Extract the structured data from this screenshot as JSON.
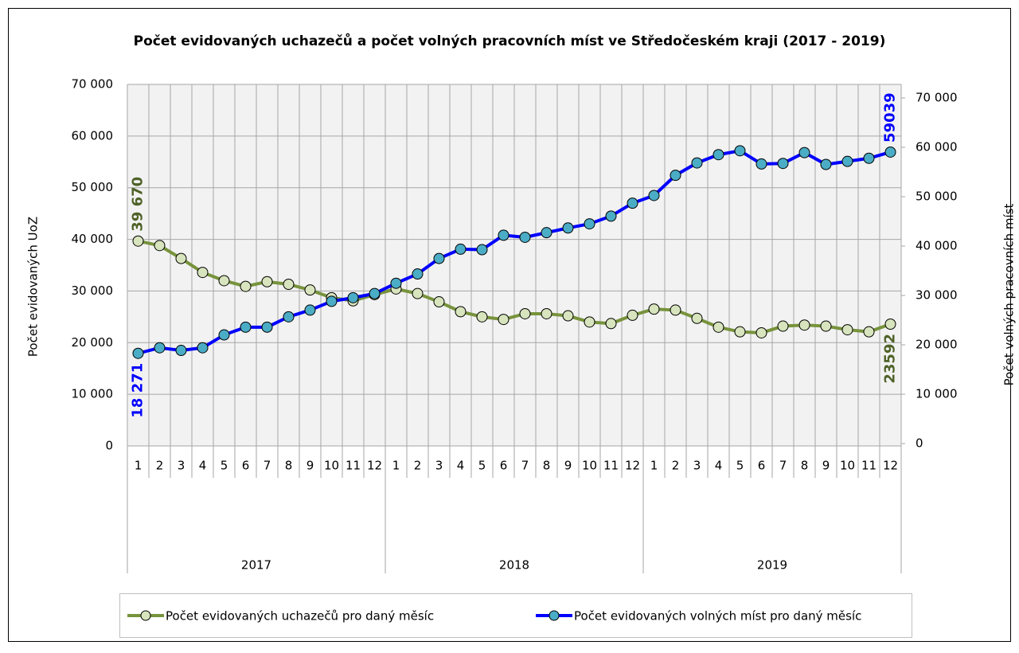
{
  "chart_data": {
    "type": "line",
    "title": "Počet evidovaných uchazečů a počet volných pracovních míst ve Středočeském kraji (2017 - 2019)",
    "y_label": "Počet evidovaných UoZ",
    "y2_label": "Počet volných pracovních míst",
    "categories": [
      "1",
      "2",
      "3",
      "4",
      "5",
      "6",
      "7",
      "8",
      "9",
      "10",
      "11",
      "12",
      "1",
      "2",
      "3",
      "4",
      "5",
      "6",
      "7",
      "8",
      "9",
      "10",
      "11",
      "12",
      "1",
      "2",
      "3",
      "4",
      "5",
      "6",
      "7",
      "8",
      "9",
      "10",
      "11",
      "12"
    ],
    "groups": [
      "2017",
      "2018",
      "2019"
    ],
    "ylim": [
      0,
      70000
    ],
    "yticks": [
      0,
      {
        "value": 10000,
        "label": "10 000"
      },
      {
        "value": 20000,
        "label": "20 000"
      },
      {
        "value": 30000,
        "label": "30 000"
      },
      {
        "value": 40000,
        "label": "40 000"
      },
      {
        "value": 50000,
        "label": "50 000"
      },
      {
        "value": 60000,
        "label": "60 000"
      },
      {
        "value": 70000,
        "label": "70 000"
      }
    ],
    "y2lim": [
      -480,
      72740
    ],
    "y2ticks": [
      0,
      {
        "value": 10000,
        "label": "10 000"
      },
      {
        "value": 20000,
        "label": "20 000"
      },
      {
        "value": 30000,
        "label": "30 000"
      },
      {
        "value": 40000,
        "label": "40 000"
      },
      {
        "value": 50000,
        "label": "50 000"
      },
      {
        "value": 60000,
        "label": "60 000"
      },
      {
        "value": 70000,
        "label": "70 000"
      }
    ],
    "grid": true,
    "legend": "bottom",
    "series": [
      {
        "name": "Počet evidovaných uchazečů pro daný měsíc",
        "color": "#77933c",
        "marker_color": "#d7e4bd",
        "values": [
          39670,
          38800,
          36300,
          33600,
          32000,
          30900,
          31800,
          31300,
          30200,
          28700,
          28100,
          29300,
          30400,
          29500,
          27900,
          26000,
          25000,
          24500,
          25600,
          25600,
          25200,
          24000,
          23700,
          25300,
          26500,
          26300,
          24700,
          23000,
          22100,
          21900,
          23200,
          23400,
          23200,
          22500,
          22100,
          23592
        ],
        "value_labels": [
          "39 670",
          null,
          null,
          null,
          null,
          null,
          null,
          null,
          null,
          null,
          null,
          null,
          null,
          null,
          null,
          null,
          null,
          null,
          null,
          null,
          null,
          null,
          null,
          null,
          null,
          null,
          null,
          null,
          null,
          null,
          null,
          null,
          null,
          null,
          null,
          "23592"
        ]
      },
      {
        "name": "Počet evidovaných volných míst pro daný měsíc",
        "color": "#0000ff",
        "marker_color": "#4bacc6",
        "axis": "y2",
        "values": [
          18271,
          19400,
          18870,
          19400,
          22010,
          23580,
          23580,
          25670,
          27030,
          28810,
          29540,
          30380,
          32470,
          34350,
          37490,
          39370,
          39270,
          42200,
          41780,
          42720,
          43660,
          44500,
          46070,
          48680,
          50250,
          54330,
          56840,
          58510,
          59300,
          56630,
          56740,
          58930,
          56530,
          57150,
          57780,
          59039
        ],
        "value_labels": [
          "18 271",
          null,
          null,
          null,
          null,
          null,
          null,
          null,
          null,
          null,
          null,
          null,
          null,
          null,
          null,
          null,
          null,
          null,
          null,
          null,
          null,
          null,
          null,
          null,
          null,
          null,
          null,
          null,
          null,
          null,
          null,
          null,
          null,
          null,
          null,
          "59039"
        ]
      }
    ]
  }
}
